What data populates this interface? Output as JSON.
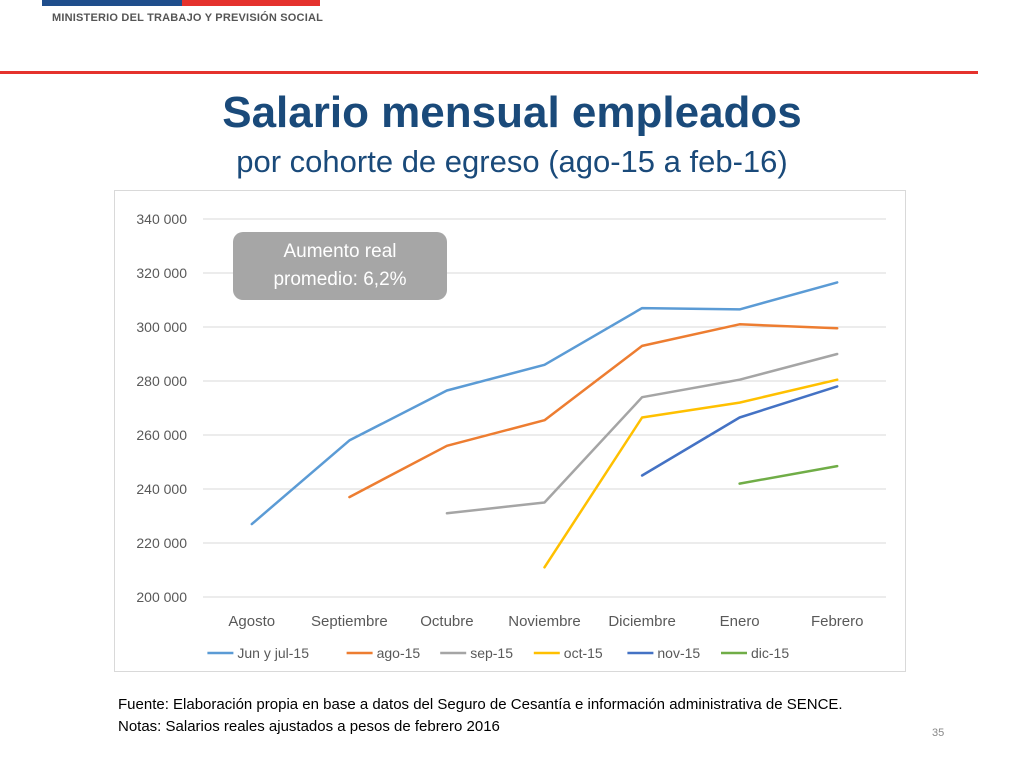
{
  "header": {
    "ministry": "MINISTERIO DEL TRABAJO Y PREVISIÓN SOCIAL"
  },
  "title": "Salario mensual empleados",
  "subtitle": "por cohorte de egreso (ago-15 a feb-16)",
  "callout": {
    "line1": "Aumento real",
    "line2": "promedio: 6,2%"
  },
  "footer": {
    "source": "Fuente: Elaboración propia en base a datos del Seguro de Cesantía e información administrativa de SENCE.",
    "notes": "Notas: Salarios reales ajustados a pesos de febrero 2016",
    "page": "35"
  },
  "chart_data": {
    "type": "line",
    "categories": [
      "Agosto",
      "Septiembre",
      "Octubre",
      "Noviembre",
      "Diciembre",
      "Enero",
      "Febrero"
    ],
    "ylim": [
      200000,
      340000
    ],
    "yticks": [
      200000,
      220000,
      240000,
      260000,
      280000,
      300000,
      320000,
      340000
    ],
    "ytick_labels": [
      "200 000",
      "220 000",
      "240 000",
      "260 000",
      "280 000",
      "300 000",
      "320 000",
      "340 000"
    ],
    "grid": true,
    "legend_position": "bottom",
    "series": [
      {
        "name": "Jun y jul-15",
        "color": "#5b9bd5",
        "values": [
          227000,
          258000,
          276500,
          286000,
          307000,
          306500,
          316500
        ]
      },
      {
        "name": "ago-15",
        "color": "#ed7d31",
        "values": [
          null,
          237000,
          256000,
          265500,
          293000,
          301000,
          299500
        ]
      },
      {
        "name": "sep-15",
        "color": "#a5a5a5",
        "values": [
          null,
          null,
          231000,
          235000,
          274000,
          280500,
          290000
        ]
      },
      {
        "name": "oct-15",
        "color": "#ffc000",
        "values": [
          null,
          null,
          null,
          211000,
          266500,
          272000,
          280500
        ]
      },
      {
        "name": "nov-15",
        "color": "#4472c4",
        "values": [
          null,
          null,
          null,
          null,
          245000,
          266500,
          278000
        ]
      },
      {
        "name": "dic-15",
        "color": "#70ad47",
        "values": [
          null,
          null,
          null,
          null,
          null,
          242000,
          248500
        ]
      }
    ]
  }
}
